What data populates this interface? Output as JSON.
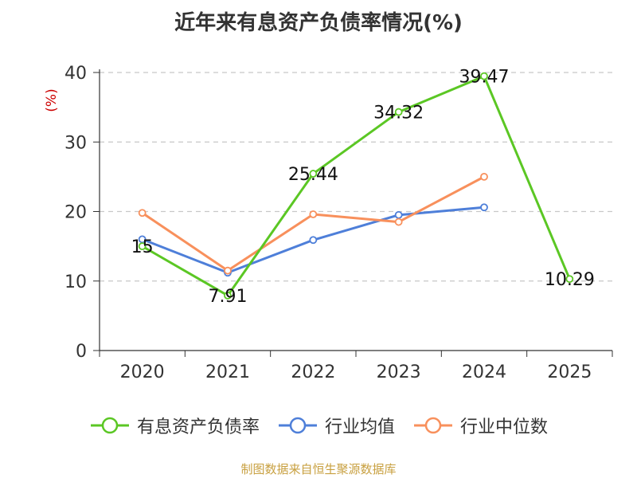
{
  "chart_data": {
    "type": "line",
    "title": "近年来有息资产负债率情况(%)",
    "ylabel": "(%)",
    "ylim": [
      0,
      40
    ],
    "yticks": [
      0,
      10,
      20,
      30,
      40
    ],
    "categories": [
      "2020",
      "2021",
      "2022",
      "2023",
      "2024",
      "2025"
    ],
    "grid": true,
    "legend_position": "bottom",
    "series": [
      {
        "name": "有息资产负债率",
        "color": "#5bc724",
        "values": [
          15,
          7.91,
          25.44,
          34.32,
          39.47,
          10.29
        ],
        "labels": [
          "15",
          "7.91",
          "25.44",
          "34.32",
          "39.47",
          "10.29"
        ]
      },
      {
        "name": "行业均值",
        "color": "#4e7fd9",
        "values": [
          16.0,
          11.2,
          15.9,
          19.5,
          20.6,
          null
        ]
      },
      {
        "name": "行业中位数",
        "color": "#f8905c",
        "values": [
          19.8,
          11.5,
          19.6,
          18.5,
          25.0,
          null
        ]
      }
    ],
    "source": "制图数据来自恒生聚源数据库"
  }
}
